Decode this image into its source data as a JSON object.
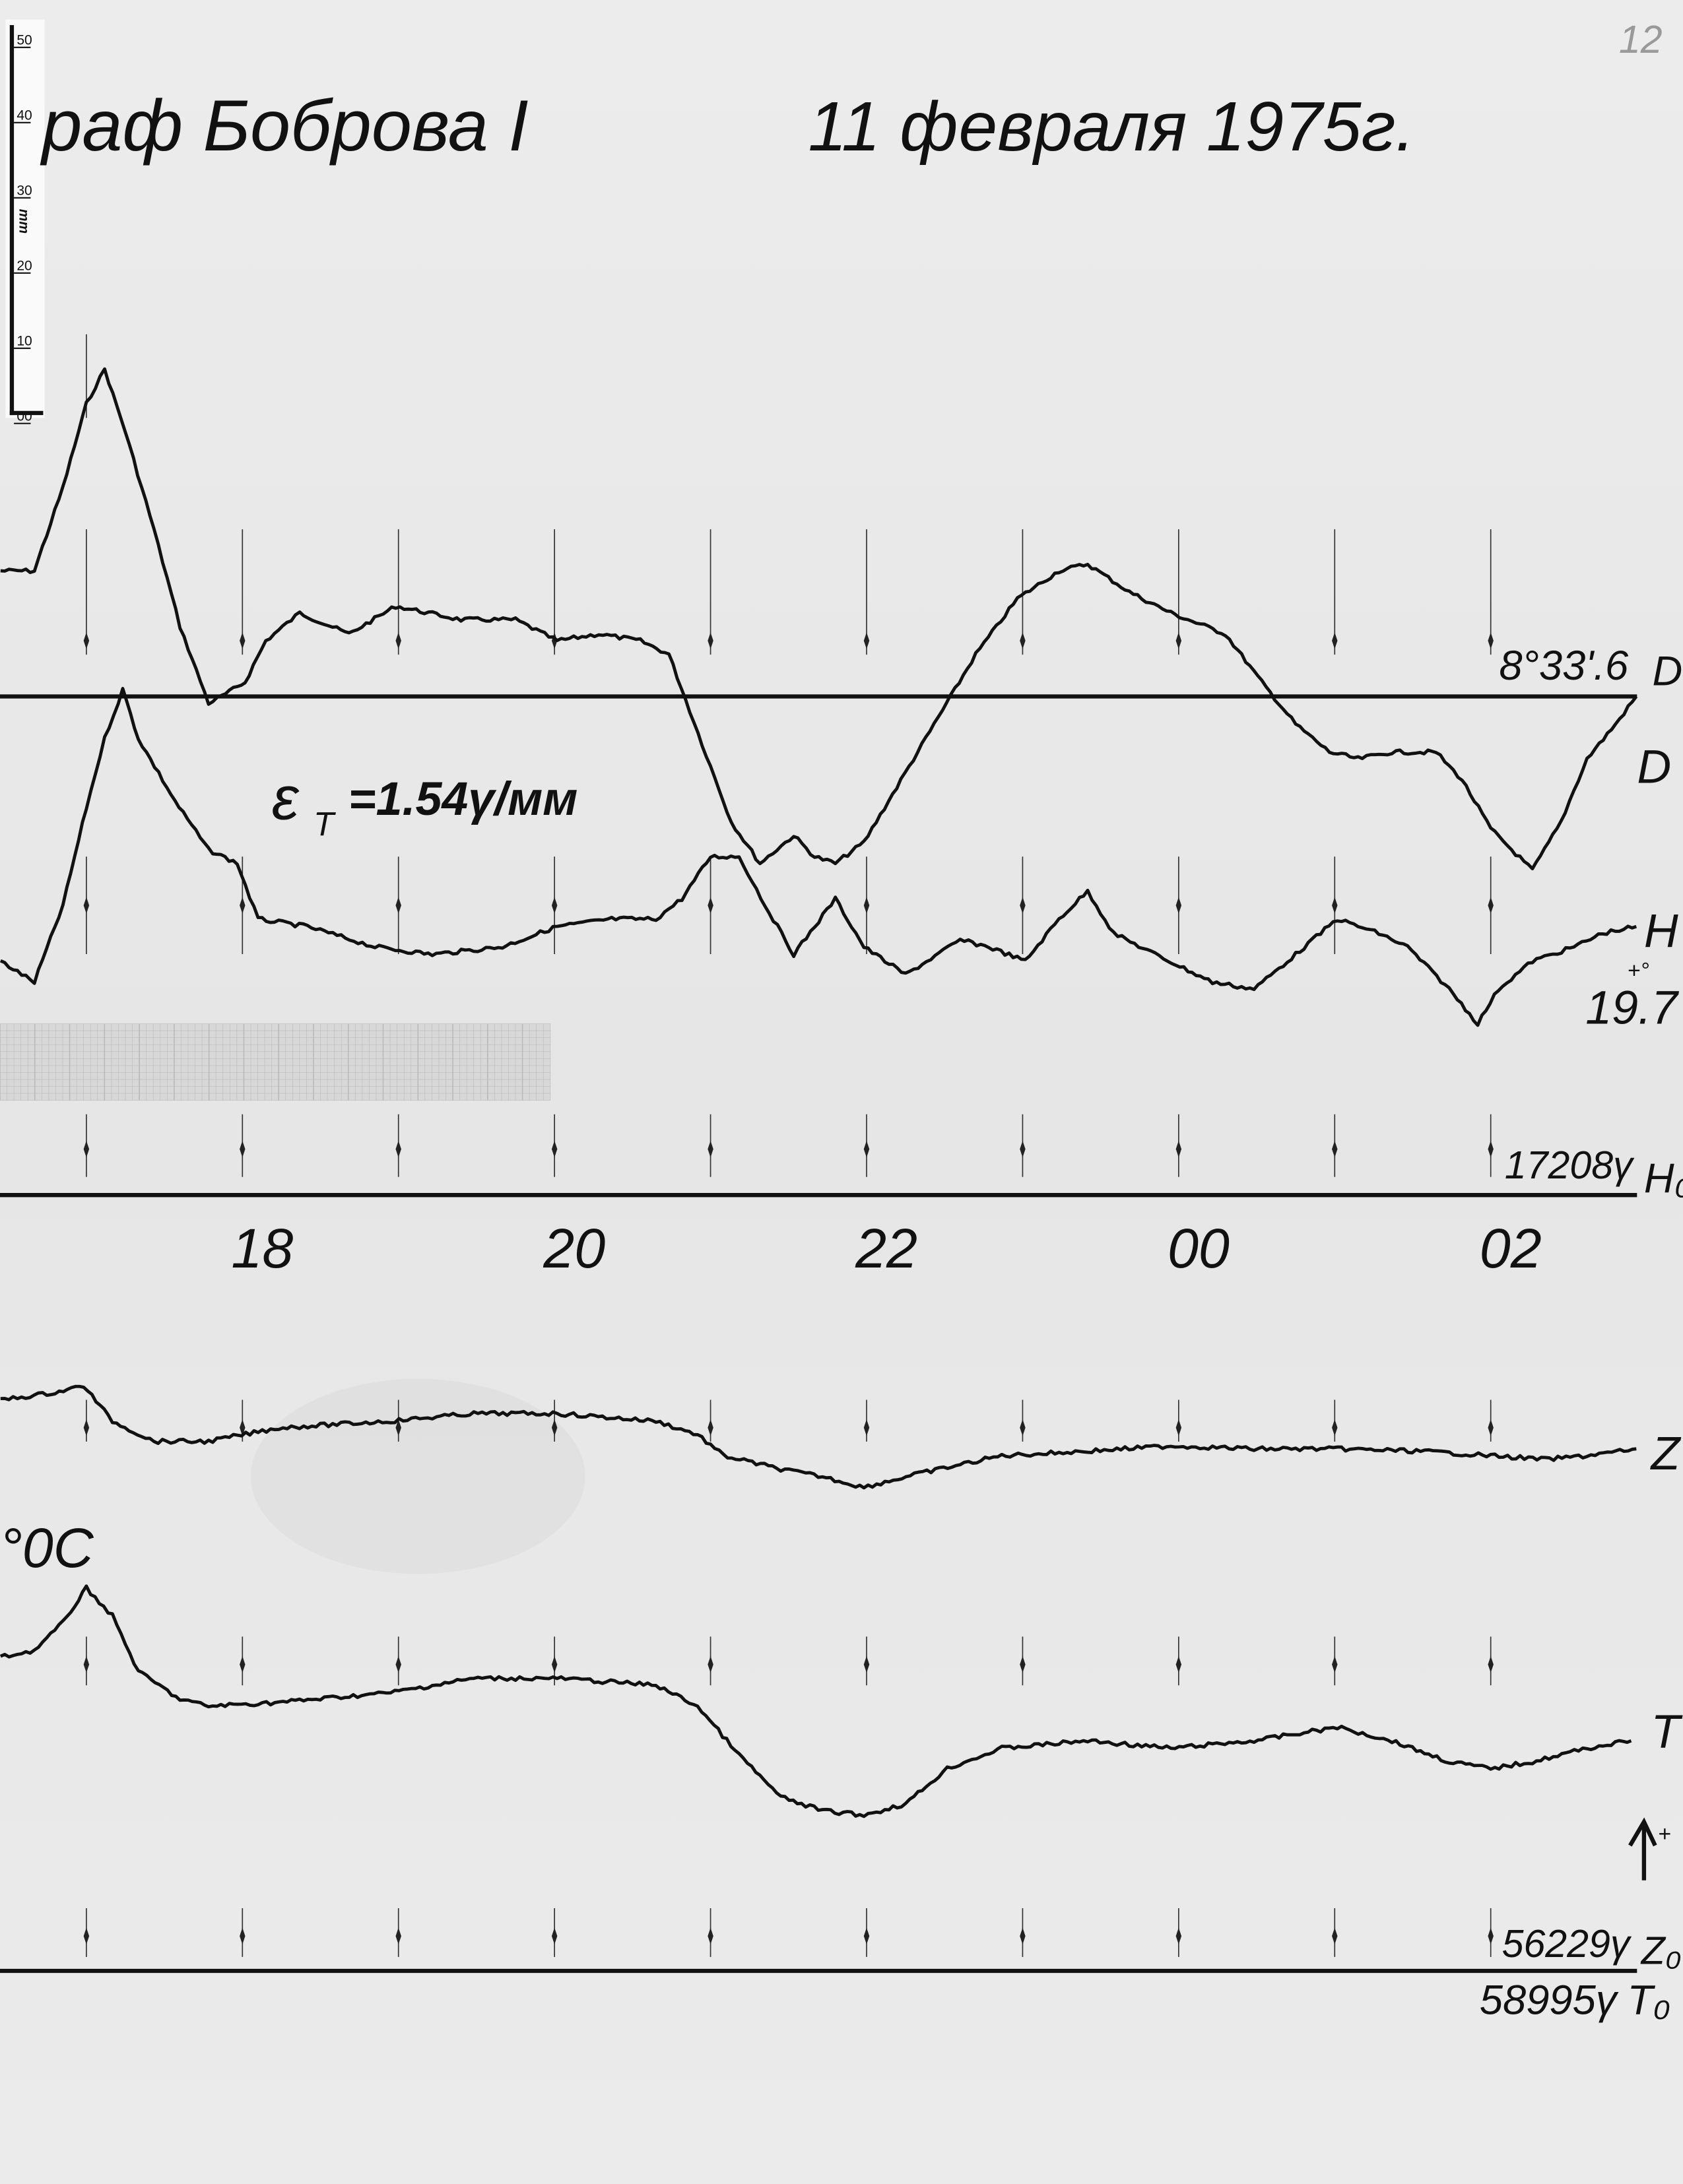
{
  "header": {
    "title": "раф Боброва I",
    "date": "11 февраля 1975г.",
    "page_number": "12"
  },
  "ruler": {
    "unit": "mm",
    "labels": [
      "50",
      "40",
      "30",
      "20",
      "10",
      "00"
    ]
  },
  "annotations": {
    "scale": "ε",
    "scale_sub": "T",
    "scale_value": "=1.54γ/мм",
    "temp_label": "°0С",
    "arrow_label": "+"
  },
  "chart_data": {
    "type": "line",
    "title": "",
    "xlabel": "",
    "ylabel": "",
    "x_unit": "time (HH:MM)",
    "y_unit": "mm trace deflection above baseline",
    "x_tick_labels": [
      "18",
      "20",
      "22",
      "00",
      "02"
    ],
    "hour_marks": [
      "17:00",
      "18:00",
      "19:00",
      "20:00",
      "21:00",
      "22:00",
      "23:00",
      "00:00",
      "01:00",
      "02:00"
    ],
    "grid": false,
    "baselines": [
      {
        "id": "D",
        "value_label": "8°33'.6",
        "component_label": "D₀"
      },
      {
        "id": "H",
        "value_label": "17208γ",
        "component_label": "H₀",
        "temp_label": "19.7",
        "temp_sign": "+°"
      },
      {
        "id": "ZT",
        "value_label": "56229γ",
        "component_label": "Z₀",
        "value_label_2": "58995γ",
        "component_label_2": "T₀"
      }
    ],
    "series": [
      {
        "name": "D",
        "baseline": "D",
        "points": [
          [
            "16:27",
            16.7
          ],
          [
            "16:40",
            16.7
          ],
          [
            "16:51",
            27.8
          ],
          [
            "17:00",
            38.9
          ],
          [
            "17:07",
            43.5
          ],
          [
            "17:15",
            35.2
          ],
          [
            "17:26",
            22.2
          ],
          [
            "17:36",
            9.3
          ],
          [
            "17:47",
            -0.9
          ],
          [
            "17:52",
            0
          ],
          [
            "18:01",
            1.9
          ],
          [
            "18:09",
            7.4
          ],
          [
            "18:22",
            11.1
          ],
          [
            "18:41",
            8.3
          ],
          [
            "18:59",
            12.0
          ],
          [
            "19:24",
            10.2
          ],
          [
            "19:45",
            10.2
          ],
          [
            "20:01",
            7.4
          ],
          [
            "20:17",
            8.3
          ],
          [
            "20:33",
            7.4
          ],
          [
            "20:44",
            5.6
          ],
          [
            "20:52",
            -1.9
          ],
          [
            "21:00",
            -9.3
          ],
          [
            "21:08",
            -16.7
          ],
          [
            "21:19",
            -22.2
          ],
          [
            "21:32",
            -18.5
          ],
          [
            "21:40",
            -21.3
          ],
          [
            "21:48",
            -22.2
          ],
          [
            "21:59",
            -19.4
          ],
          [
            "22:10",
            -13.0
          ],
          [
            "22:26",
            -3.7
          ],
          [
            "22:42",
            5.6
          ],
          [
            "22:58",
            13.0
          ],
          [
            "23:14",
            16.7
          ],
          [
            "23:25",
            17.6
          ],
          [
            "23:41",
            13.9
          ],
          [
            "23:57",
            11.1
          ],
          [
            "00:18",
            8.3
          ],
          [
            "00:32",
            1.9
          ],
          [
            "00:45",
            -3.7
          ],
          [
            "00:58",
            -7.4
          ],
          [
            "01:09",
            -8.3
          ],
          [
            "01:22",
            -7.4
          ],
          [
            "01:39",
            -7.4
          ],
          [
            "01:49",
            -11.1
          ],
          [
            "02:00",
            -17.6
          ],
          [
            "02:16",
            -23.1
          ],
          [
            "02:27",
            -16.7
          ],
          [
            "02:37",
            -8.3
          ],
          [
            "02:48",
            -3.7
          ],
          [
            "02:56",
            0
          ]
        ]
      },
      {
        "name": "H",
        "baseline": "H",
        "points": [
          [
            "16:27",
            31.1
          ],
          [
            "16:40",
            28.3
          ],
          [
            "16:51",
            38.5
          ],
          [
            "17:00",
            51.5
          ],
          [
            "17:07",
            60.7
          ],
          [
            "17:14",
            67.2
          ],
          [
            "17:20",
            60.7
          ],
          [
            "17:34",
            52.4
          ],
          [
            "17:47",
            45.9
          ],
          [
            "17:58",
            44.1
          ],
          [
            "18:06",
            36.7
          ],
          [
            "18:25",
            35.7
          ],
          [
            "18:51",
            33.0
          ],
          [
            "19:13",
            32.0
          ],
          [
            "19:40",
            33.0
          ],
          [
            "20:01",
            35.7
          ],
          [
            "20:22",
            36.7
          ],
          [
            "20:39",
            36.7
          ],
          [
            "20:49",
            39.4
          ],
          [
            "21:00",
            45.0
          ],
          [
            "21:11",
            45.0
          ],
          [
            "21:21",
            38.5
          ],
          [
            "21:32",
            32.0
          ],
          [
            "21:48",
            39.4
          ],
          [
            "21:59",
            33.0
          ],
          [
            "22:15",
            29.3
          ],
          [
            "22:36",
            33.9
          ],
          [
            "22:47",
            33.0
          ],
          [
            "23:01",
            31.1
          ],
          [
            "23:14",
            36.7
          ],
          [
            "23:25",
            40.4
          ],
          [
            "23:35",
            34.8
          ],
          [
            "23:51",
            32.0
          ],
          [
            "00:13",
            28.3
          ],
          [
            "00:29",
            27.4
          ],
          [
            "00:45",
            32.0
          ],
          [
            "01:01",
            36.7
          ],
          [
            "01:17",
            34.8
          ],
          [
            "01:28",
            33.0
          ],
          [
            "01:44",
            27.4
          ],
          [
            "01:55",
            22.8
          ],
          [
            "02:03",
            27.4
          ],
          [
            "02:16",
            31.1
          ],
          [
            "02:32",
            33.0
          ],
          [
            "02:43",
            34.8
          ],
          [
            "02:56",
            35.7
          ]
        ]
      },
      {
        "name": "Z",
        "baseline": "ZT",
        "points": [
          [
            "16:27",
            75.9
          ],
          [
            "16:48",
            76.9
          ],
          [
            "16:59",
            77.8
          ],
          [
            "17:10",
            73.1
          ],
          [
            "17:26",
            70.4
          ],
          [
            "17:47",
            70.4
          ],
          [
            "18:14",
            72.2
          ],
          [
            "18:57",
            73.1
          ],
          [
            "19:29",
            74.1
          ],
          [
            "20:01",
            74.1
          ],
          [
            "20:39",
            73.1
          ],
          [
            "20:55",
            71.3
          ],
          [
            "21:05",
            68.5
          ],
          [
            "21:27",
            66.7
          ],
          [
            "21:43",
            65.7
          ],
          [
            "21:59",
            64.3
          ],
          [
            "22:20",
            66.1
          ],
          [
            "22:52",
            68.5
          ],
          [
            "23:25",
            69.1
          ],
          [
            "23:57",
            69.8
          ],
          [
            "00:29",
            69.4
          ],
          [
            "01:01",
            69.4
          ],
          [
            "01:33",
            69.1
          ],
          [
            "02:00",
            68.5
          ],
          [
            "02:21",
            68.0
          ],
          [
            "02:37",
            68.5
          ],
          [
            "02:56",
            69.4
          ]
        ]
      },
      {
        "name": "T",
        "baseline": "ZT",
        "points": [
          [
            "16:27",
            41.7
          ],
          [
            "16:40",
            42.6
          ],
          [
            "16:51",
            46.3
          ],
          [
            "17:00",
            50.9
          ],
          [
            "17:10",
            47.2
          ],
          [
            "17:20",
            39.8
          ],
          [
            "17:36",
            36.1
          ],
          [
            "17:47",
            35.2
          ],
          [
            "18:14",
            35.7
          ],
          [
            "18:57",
            37.0
          ],
          [
            "19:29",
            38.9
          ],
          [
            "20:01",
            38.9
          ],
          [
            "20:39",
            38.0
          ],
          [
            "20:55",
            35.2
          ],
          [
            "21:11",
            28.7
          ],
          [
            "21:27",
            23.1
          ],
          [
            "21:43",
            21.3
          ],
          [
            "21:59",
            20.7
          ],
          [
            "22:15",
            22.2
          ],
          [
            "22:31",
            26.9
          ],
          [
            "22:52",
            29.6
          ],
          [
            "23:25",
            30.6
          ],
          [
            "23:57",
            29.6
          ],
          [
            "00:29",
            30.6
          ],
          [
            "01:01",
            32.4
          ],
          [
            "01:22",
            30.6
          ],
          [
            "01:44",
            27.8
          ],
          [
            "02:00",
            26.9
          ],
          [
            "02:16",
            27.8
          ],
          [
            "02:37",
            29.6
          ],
          [
            "02:54",
            30.6
          ]
        ]
      }
    ]
  }
}
